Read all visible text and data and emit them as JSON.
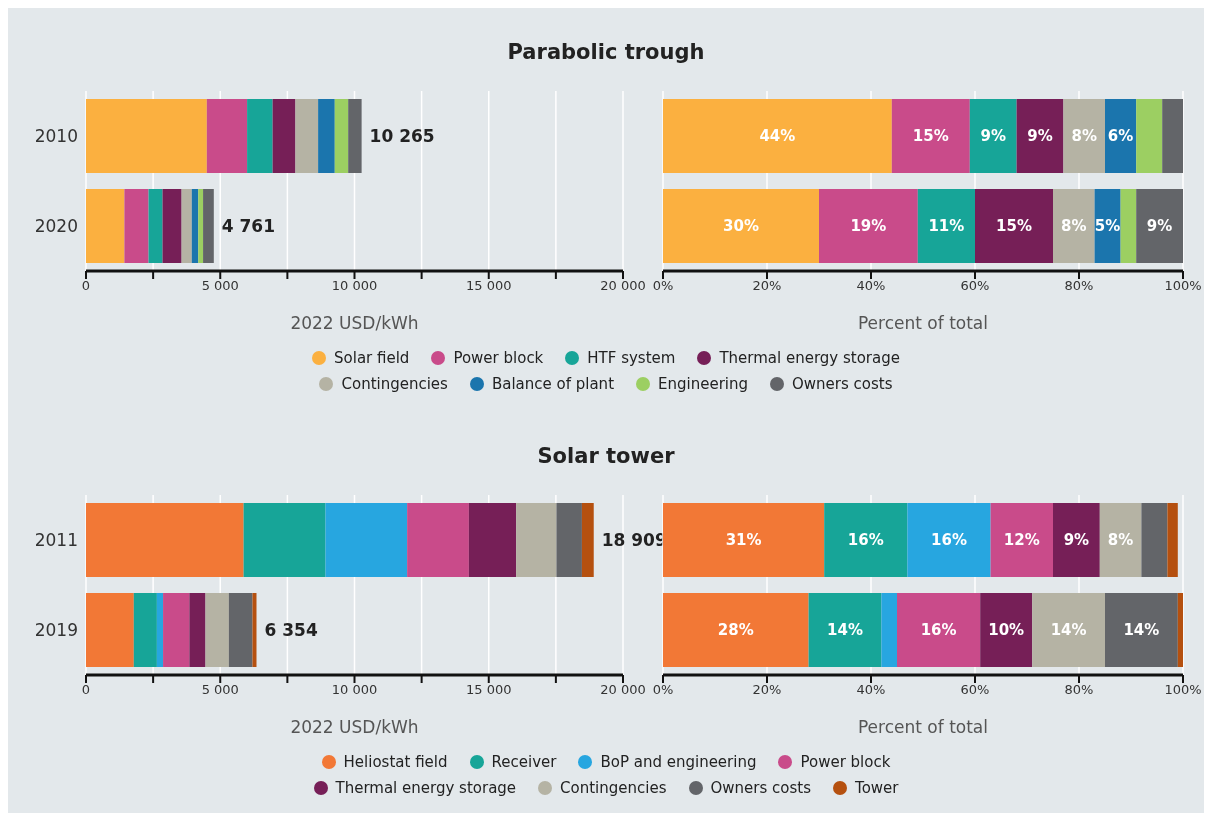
{
  "chart_data": [
    {
      "type": "bar",
      "title": "Parabolic trough",
      "orientation": "horizontal",
      "stacked": true,
      "categories": [
        "2010",
        "2020"
      ],
      "xlabel": "2022 USD/kWh",
      "xlim": [
        0,
        20000
      ],
      "xticks": [
        0,
        {
          "value": 2500,
          "label": null
        },
        {
          "value": 5000,
          "label": "5 000"
        },
        {
          "value": 7500,
          "label": null
        },
        {
          "value": 10000,
          "label": "10 000"
        },
        {
          "value": 12500,
          "label": null
        },
        {
          "value": 15000,
          "label": "15 000"
        },
        {
          "value": 17500,
          "label": null
        },
        {
          "value": 20000,
          "label": "20 000"
        }
      ],
      "grid": "x",
      "totals": [
        "10 265",
        "4 761"
      ],
      "series": [
        {
          "color": "#fbb040",
          "values": [
            4500,
            1430
          ]
        },
        {
          "color": "#c94b8a",
          "values": [
            1500,
            900
          ]
        },
        {
          "color": "#17a598",
          "values": [
            950,
            520
          ]
        },
        {
          "color": "#761f57",
          "values": [
            850,
            710
          ]
        },
        {
          "color": "#b5b3a4",
          "values": [
            845,
            380
          ]
        },
        {
          "color": "#1b75ad",
          "values": [
            620,
            240
          ]
        },
        {
          "color": "#9ccf62",
          "values": [
            500,
            180
          ]
        },
        {
          "color": "#636569",
          "values": [
            500,
            400
          ]
        }
      ]
    },
    {
      "type": "bar",
      "orientation": "horizontal",
      "stacked": true,
      "categories": [
        "2010",
        "2020"
      ],
      "xlabel": "Percent of total",
      "xlim": [
        0,
        100
      ],
      "xticks": [
        {
          "value": 0,
          "label": "0%"
        },
        {
          "value": 20,
          "label": "20%"
        },
        {
          "value": 40,
          "label": "40%"
        },
        {
          "value": 60,
          "label": "60%"
        },
        {
          "value": 80,
          "label": "80%"
        },
        {
          "value": 100,
          "label": "100%"
        }
      ],
      "grid": "x",
      "tick_labels": "x",
      "legend": "bottom",
      "series": [
        {
          "name": "Solar field",
          "color": "#fbb040",
          "values": [
            44,
            30
          ],
          "value_labels": [
            "44%",
            "30%"
          ]
        },
        {
          "name": "Power block",
          "color": "#c94b8a",
          "values": [
            15,
            19
          ],
          "value_labels": [
            "15%",
            "19%"
          ]
        },
        {
          "name": "HTF system",
          "color": "#17a598",
          "values": [
            9,
            11
          ],
          "value_labels": [
            "9%",
            "11%"
          ]
        },
        {
          "name": "Thermal energy storage",
          "color": "#761f57",
          "values": [
            9,
            15
          ],
          "value_labels": [
            "9%",
            "15%"
          ]
        },
        {
          "name": "Contingencies",
          "color": "#b5b3a4",
          "values": [
            8,
            8
          ],
          "value_labels": [
            "8%",
            "8%"
          ]
        },
        {
          "name": "Balance of plant",
          "color": "#1b75ad",
          "values": [
            6,
            5
          ],
          "value_labels": [
            "6%",
            "5%"
          ]
        },
        {
          "name": "Engineering",
          "color": "#9ccf62",
          "values": [
            5,
            3
          ]
        },
        {
          "name": "Owners costs",
          "color": "#636569",
          "values": [
            4,
            9
          ],
          "value_labels": [
            null,
            "9%"
          ]
        }
      ]
    },
    {
      "type": "bar",
      "title": "Solar tower",
      "orientation": "horizontal",
      "stacked": true,
      "categories": [
        "2011",
        "2019"
      ],
      "xlabel": "2022 USD/kWh",
      "xlim": [
        0,
        20000
      ],
      "xticks": [
        0,
        {
          "value": 2500,
          "label": null
        },
        {
          "value": 5000,
          "label": "5 000"
        },
        {
          "value": 7500,
          "label": null
        },
        {
          "value": 10000,
          "label": "10 000"
        },
        {
          "value": 12500,
          "label": null
        },
        {
          "value": 15000,
          "label": "15 000"
        },
        {
          "value": 17500,
          "label": null
        },
        {
          "value": 20000,
          "label": "20 000"
        }
      ],
      "grid": "x",
      "totals": [
        "18 909",
        "6 354"
      ],
      "series": [
        {
          "color": "#f27836",
          "values": [
            5870,
            1780
          ]
        },
        {
          "color": "#17a598",
          "values": [
            3050,
            860
          ]
        },
        {
          "color": "#27a6e0",
          "values": [
            3040,
            230
          ]
        },
        {
          "color": "#c94b8a",
          "values": [
            2300,
            980
          ]
        },
        {
          "color": "#761f57",
          "values": [
            1760,
            600
          ]
        },
        {
          "color": "#b5b3a4",
          "values": [
            1500,
            870
          ]
        },
        {
          "color": "#636569",
          "values": [
            950,
            880
          ]
        },
        {
          "color": "#b5500f",
          "values": [
            440,
            150
          ]
        }
      ]
    },
    {
      "type": "bar",
      "orientation": "horizontal",
      "stacked": true,
      "categories": [
        "2011",
        "2019"
      ],
      "xlabel": "Percent of total",
      "xlim": [
        0,
        100
      ],
      "xticks": [
        {
          "value": 0,
          "label": "0%"
        },
        {
          "value": 20,
          "label": "20%"
        },
        {
          "value": 40,
          "label": "40%"
        },
        {
          "value": 60,
          "label": "60%"
        },
        {
          "value": 80,
          "label": "80%"
        },
        {
          "value": 100,
          "label": "100%"
        }
      ],
      "grid": "x",
      "tick_labels": "x",
      "legend": "bottom",
      "series": [
        {
          "name": "Heliostat field",
          "color": "#f27836",
          "values": [
            31,
            28
          ],
          "value_labels": [
            "31%",
            "28%"
          ]
        },
        {
          "name": "Receiver",
          "color": "#17a598",
          "values": [
            16,
            14
          ],
          "value_labels": [
            "16%",
            "14%"
          ]
        },
        {
          "name": "BoP and engineering",
          "color": "#27a6e0",
          "values": [
            16,
            3
          ],
          "value_labels": [
            "16%",
            null
          ]
        },
        {
          "name": "Power block",
          "color": "#c94b8a",
          "values": [
            12,
            16
          ],
          "value_labels": [
            "12%",
            "16%"
          ]
        },
        {
          "name": "Thermal energy storage",
          "color": "#761f57",
          "values": [
            9,
            10
          ],
          "value_labels": [
            "9%",
            "10%"
          ]
        },
        {
          "name": "Contingencies",
          "color": "#b5b3a4",
          "values": [
            8,
            14
          ],
          "value_labels": [
            "8%",
            "14%"
          ]
        },
        {
          "name": "Owners costs",
          "color": "#636569",
          "values": [
            5,
            14
          ],
          "value_labels": [
            null,
            "14%"
          ]
        },
        {
          "name": "Tower",
          "color": "#b5500f",
          "values": [
            2,
            1
          ]
        }
      ]
    }
  ]
}
